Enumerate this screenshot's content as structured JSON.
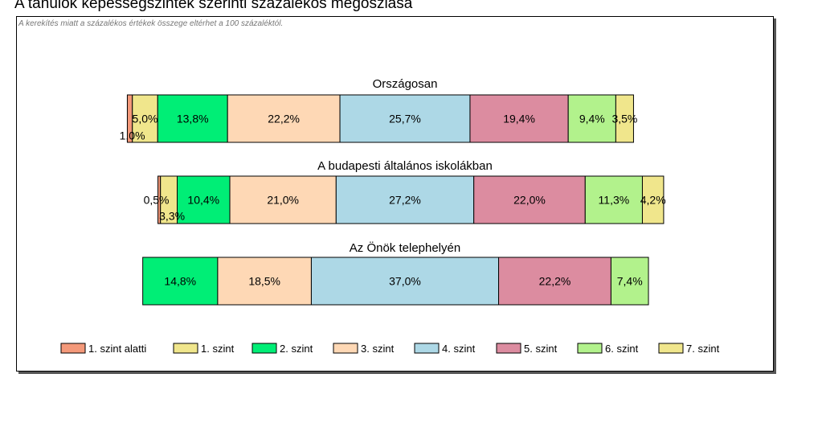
{
  "page": {
    "title": "A tanulók képességszintek szerinti százalékos megoszlása",
    "note": "A kerekítés miatt a  százalékos értékek összege eltérhet a 100 százaléktól."
  },
  "chart_data": {
    "type": "bar",
    "orientation": "horizontal-stacked-percent",
    "grid": false,
    "legend_position": "bottom",
    "series": [
      {
        "name": "1. szint alatti",
        "color": "#f4997a"
      },
      {
        "name": "1. szint",
        "color": "#f0e68c"
      },
      {
        "name": "2. szint",
        "color": "#00ee76"
      },
      {
        "name": "3. szint",
        "color": "#fed8b5"
      },
      {
        "name": "4. szint",
        "color": "#add8e6"
      },
      {
        "name": "5. szint",
        "color": "#dc8ca0"
      },
      {
        "name": "6. szint",
        "color": "#b2f28c"
      },
      {
        "name": "7. szint",
        "color": "#f0e68c"
      }
    ],
    "bars": [
      {
        "title": "Országosan",
        "values": [
          1.0,
          5.0,
          13.8,
          22.2,
          25.7,
          19.4,
          9.4,
          3.5
        ],
        "labels": [
          "1,0%",
          "5,0%",
          "13,8%",
          "22,2%",
          "25,7%",
          "19,4%",
          "9,4%",
          "3,5%"
        ]
      },
      {
        "title": "A budapesti általános iskolákban",
        "values": [
          0.5,
          3.3,
          10.4,
          21.0,
          27.2,
          22.0,
          11.3,
          4.2
        ],
        "labels": [
          "0,5%",
          "3,3%",
          "10,4%",
          "21,0%",
          "27,2%",
          "22,0%",
          "11,3%",
          "4,2%"
        ]
      },
      {
        "title": "Az Önök telephelyén",
        "values": [
          0,
          0,
          14.8,
          18.5,
          37.0,
          22.2,
          7.4,
          0
        ],
        "labels": [
          "",
          "",
          "14,8%",
          "18,5%",
          "37,0%",
          "22,2%",
          "7,4%",
          ""
        ]
      }
    ]
  }
}
